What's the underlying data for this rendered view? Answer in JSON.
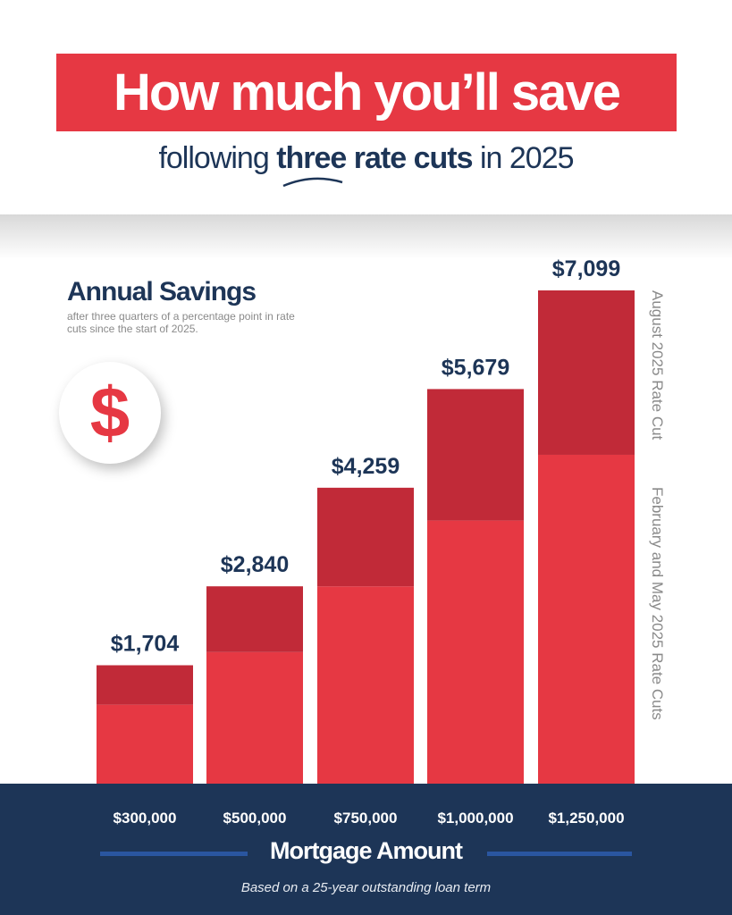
{
  "header": {
    "title": "How much you’ll save",
    "subtitle_pre": "following ",
    "subtitle_bold": "three rate cuts",
    "subtitle_post": " in 2025"
  },
  "annual": {
    "title": "Annual Savings",
    "subtitle": "after three quarters of a percentage point in rate cuts since the start of 2025.",
    "icon": "dollar-icon",
    "icon_glyph": "$"
  },
  "chart_data": {
    "type": "bar",
    "stacked": true,
    "categories": [
      "$300,000",
      "$500,000",
      "$750,000",
      "$1,000,000",
      "$1,250,000"
    ],
    "series": [
      {
        "name": "February and May 2025 Rate Cuts",
        "values": [
          1136,
          1893,
          2839,
          3786,
          4733
        ],
        "color": "#e63843"
      },
      {
        "name": "August 2025 Rate Cut",
        "values": [
          568,
          947,
          1420,
          1893,
          2366
        ],
        "color": "#c12a38"
      }
    ],
    "totals": [
      1704,
      2840,
      4259,
      5679,
      7099
    ],
    "total_labels": [
      "$1,704",
      "$2,840",
      "$4,259",
      "$5,679",
      "$7,099"
    ],
    "xlabel": "Mortgage Amount",
    "ylim": [
      0,
      7099
    ],
    "grid": false,
    "legend": "right, vertical labels beside last bar"
  },
  "footer": {
    "note": "Based on a 25-year outstanding loan term"
  },
  "colors": {
    "red": "#e63843",
    "dark_red": "#c12a38",
    "navy": "#1d3557",
    "accent_line": "#2a56a0"
  }
}
